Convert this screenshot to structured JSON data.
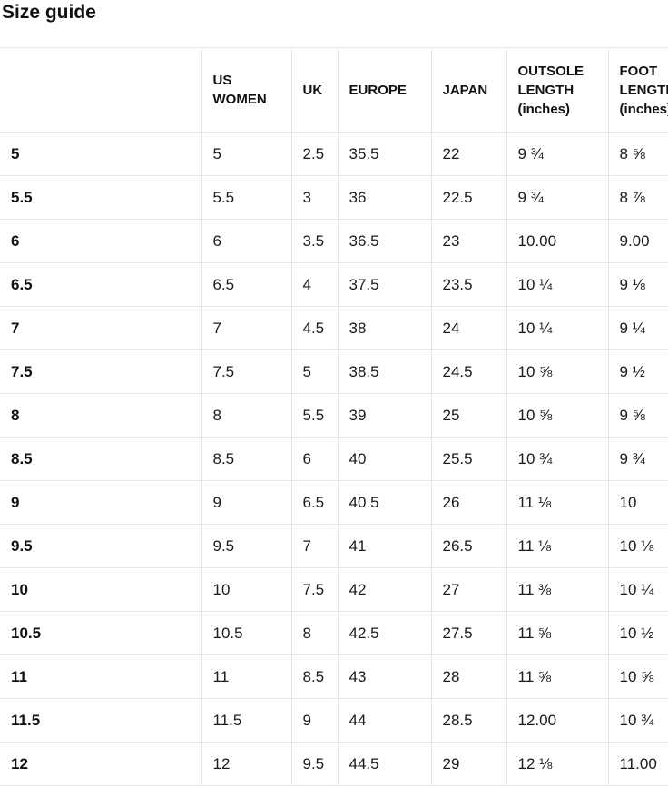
{
  "page": {
    "title": "Size guide"
  },
  "table": {
    "columns": [
      {
        "key": "size",
        "label": ""
      },
      {
        "key": "us_women",
        "label": "US WOMEN"
      },
      {
        "key": "uk",
        "label": "UK"
      },
      {
        "key": "europe",
        "label": "EUROPE"
      },
      {
        "key": "japan",
        "label": "JAPAN"
      },
      {
        "key": "outsole_length",
        "label": "OUTSOLE LENGTH (inches)"
      },
      {
        "key": "foot_length",
        "label": "FOOT LENGTH (inches)"
      }
    ],
    "rows": [
      [
        "5",
        "5",
        "2.5",
        "35.5",
        "22",
        "9 ¾",
        "8 ⅝"
      ],
      [
        "5.5",
        "5.5",
        "3",
        "36",
        "22.5",
        "9 ¾",
        "8 ⅞"
      ],
      [
        "6",
        "6",
        "3.5",
        "36.5",
        "23",
        "10.00",
        "9.00"
      ],
      [
        "6.5",
        "6.5",
        "4",
        "37.5",
        "23.5",
        "10 ¼",
        "9 ⅛"
      ],
      [
        "7",
        "7",
        "4.5",
        "38",
        "24",
        "10 ¼",
        "9 ¼"
      ],
      [
        "7.5",
        "7.5",
        "5",
        "38.5",
        "24.5",
        "10 ⅝",
        "9 ½"
      ],
      [
        "8",
        "8",
        "5.5",
        "39",
        "25",
        "10 ⅝",
        "9 ⅝"
      ],
      [
        "8.5",
        "8.5",
        "6",
        "40",
        "25.5",
        "10 ¾",
        "9 ¾"
      ],
      [
        "9",
        "9",
        "6.5",
        "40.5",
        "26",
        "11 ⅛",
        "10"
      ],
      [
        "9.5",
        "9.5",
        "7",
        "41",
        "26.5",
        "11 ⅛",
        "10 ⅛"
      ],
      [
        "10",
        "10",
        "7.5",
        "42",
        "27",
        "11 ⅜",
        "10 ¼"
      ],
      [
        "10.5",
        "10.5",
        "8",
        "42.5",
        "27.5",
        "11 ⅝",
        "10 ½"
      ],
      [
        "11",
        "11",
        "8.5",
        "43",
        "28",
        "11 ⅝",
        "10 ⅝"
      ],
      [
        "11.5",
        "11.5",
        "9",
        "44",
        "28.5",
        "12.00",
        "10 ¾"
      ],
      [
        "12",
        "12",
        "9.5",
        "44.5",
        "29",
        "12 ⅛",
        "11.00"
      ]
    ]
  }
}
